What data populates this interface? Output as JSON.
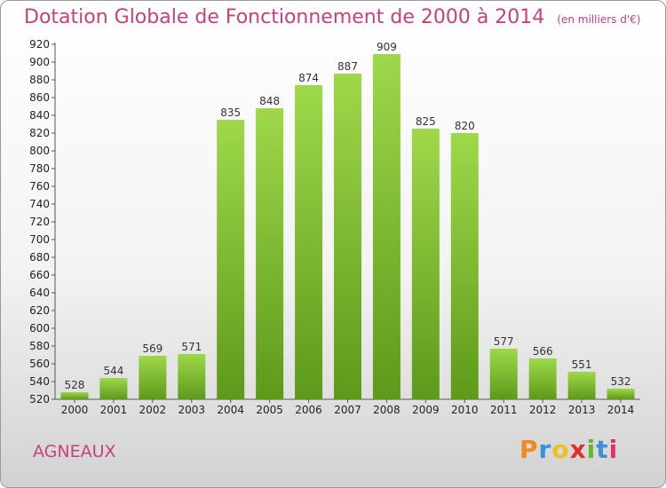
{
  "title": "Dotation Globale de Fonctionnement de 2000 à 2014",
  "unit_note": "(en milliers d'€)",
  "commune": "AGNEAUX",
  "logo_text": "Proxiti",
  "colors": {
    "title": "#c8407a",
    "bar_light": "#9ed84a",
    "bar_dark": "#5d9a1a",
    "logo_p": "#f08a1c",
    "logo_r": "#3d8fd8",
    "logo_o": "#f0c020",
    "logo_x": "#e03030",
    "logo_i1": "#6ab42a",
    "logo_t": "#3d8fd8",
    "logo_i2": "#e03070"
  },
  "chart_data": {
    "type": "bar",
    "title": "Dotation Globale de Fonctionnement de 2000 à 2014",
    "subtitle": "(en milliers d'€)",
    "xlabel": "",
    "ylabel": "",
    "categories": [
      "2000",
      "2001",
      "2002",
      "2003",
      "2004",
      "2005",
      "2006",
      "2007",
      "2008",
      "2009",
      "2010",
      "2011",
      "2012",
      "2013",
      "2014"
    ],
    "values": [
      528,
      544,
      569,
      571,
      835,
      848,
      874,
      887,
      909,
      825,
      820,
      577,
      566,
      551,
      532
    ],
    "ylim": [
      520,
      920
    ],
    "ytick_step": 20,
    "grid": false,
    "legend": "none"
  }
}
